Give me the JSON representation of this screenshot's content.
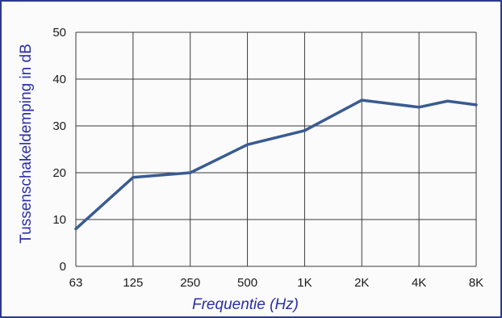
{
  "chart_data": {
    "type": "line",
    "title": "",
    "xlabel": "Frequentie (Hz)",
    "ylabel": "Tussenschakeldemping in dB",
    "categories": [
      "63",
      "125",
      "250",
      "500",
      "1K",
      "2K",
      "4K",
      "8K"
    ],
    "ylim": [
      0,
      50
    ],
    "yticks": [
      "0",
      "10",
      "20",
      "30",
      "40",
      "50"
    ],
    "grid": true,
    "line_color": "#3a5b92",
    "series": [
      {
        "x": [
          0,
          1,
          2,
          3,
          4,
          5,
          6,
          6.5,
          7
        ],
        "values": [
          8,
          19,
          20,
          26,
          29,
          35.5,
          34,
          35.3,
          34.5
        ]
      }
    ]
  }
}
